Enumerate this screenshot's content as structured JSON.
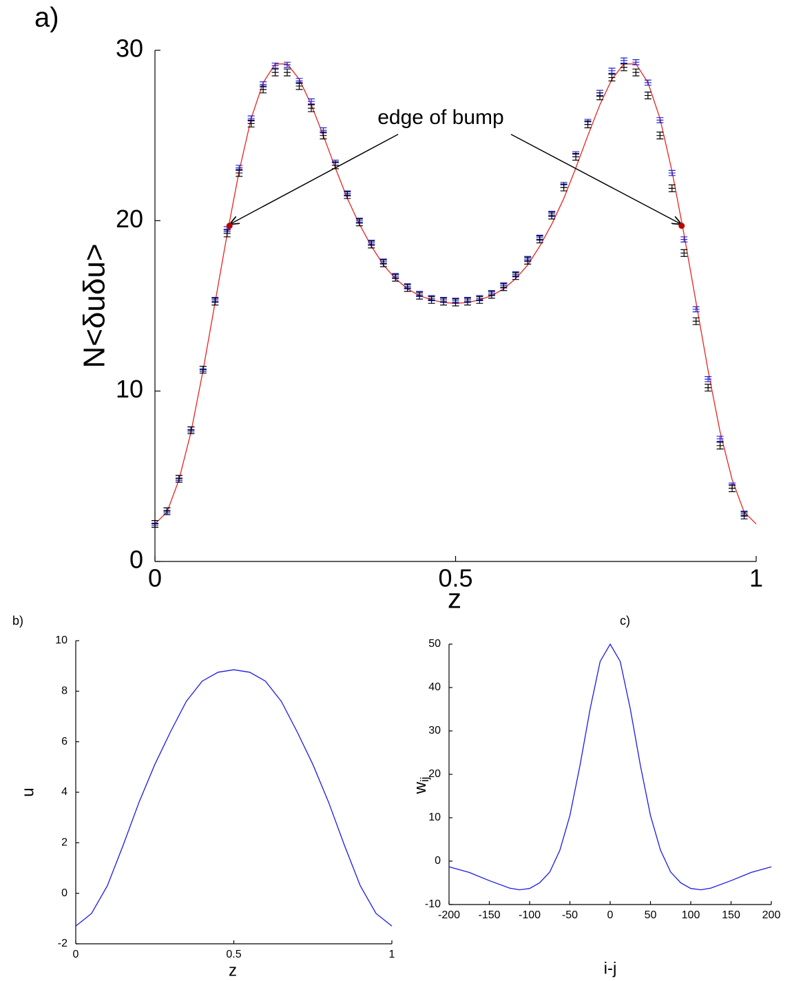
{
  "chart_data": [
    {
      "type": "line",
      "panel_label": "a)",
      "xlabel": "z",
      "ylabel": "N<δuδu>",
      "xlim": [
        0,
        1
      ],
      "xticks": [
        0,
        0.5,
        1
      ],
      "ylim": [
        0,
        30
      ],
      "yticks": [
        0,
        10,
        20,
        30
      ],
      "series": [
        {
          "type": "line",
          "color": "#e8231e",
          "x": [
            0,
            0.02,
            0.04,
            0.06,
            0.08,
            0.1,
            0.12,
            0.14,
            0.16,
            0.18,
            0.2,
            0.22,
            0.24,
            0.26,
            0.28,
            0.3,
            0.32,
            0.34,
            0.36,
            0.38,
            0.4,
            0.42,
            0.44,
            0.46,
            0.48,
            0.5,
            0.52,
            0.54,
            0.56,
            0.58,
            0.6,
            0.62,
            0.64,
            0.66,
            0.68,
            0.7,
            0.72,
            0.74,
            0.76,
            0.78,
            0.8,
            0.82,
            0.84,
            0.86,
            0.88,
            0.9,
            0.92,
            0.94,
            0.96,
            0.98,
            1
          ],
          "values": [
            2.2,
            2.9,
            4.8,
            7.6,
            11.2,
            15.2,
            19.2,
            22.9,
            26.0,
            28.1,
            29.2,
            29.2,
            28.3,
            26.8,
            25.0,
            23.1,
            21.3,
            19.8,
            18.5,
            17.4,
            16.6,
            16.0,
            15.6,
            15.35,
            15.2,
            15.15,
            15.2,
            15.35,
            15.6,
            16.0,
            16.6,
            17.4,
            18.5,
            19.8,
            21.3,
            23.1,
            25.0,
            26.8,
            28.3,
            29.2,
            29.2,
            28.1,
            26.0,
            22.9,
            19.2,
            15.2,
            11.2,
            7.6,
            4.8,
            2.9,
            2.2
          ]
        },
        {
          "type": "errorbar",
          "color": "#2020d8",
          "x": [
            0,
            0.02,
            0.04,
            0.06,
            0.08,
            0.1,
            0.12,
            0.14,
            0.16,
            0.18,
            0.2,
            0.22,
            0.24,
            0.26,
            0.28,
            0.3,
            0.32,
            0.34,
            0.36,
            0.38,
            0.4,
            0.42,
            0.44,
            0.46,
            0.48,
            0.5,
            0.52,
            0.54,
            0.56,
            0.58,
            0.6,
            0.62,
            0.64,
            0.66,
            0.68,
            0.7,
            0.72,
            0.74,
            0.76,
            0.78,
            0.8,
            0.82,
            0.84,
            0.86,
            0.88,
            0.9,
            0.92,
            0.94,
            0.96,
            0.98
          ],
          "values": [
            2.25,
            3.0,
            4.9,
            7.75,
            11.3,
            15.35,
            19.5,
            23.1,
            26.0,
            28.0,
            29.1,
            29.15,
            28.2,
            27.0,
            25.3,
            23.4,
            21.6,
            20.0,
            18.7,
            17.6,
            16.75,
            16.15,
            15.7,
            15.45,
            15.35,
            15.3,
            15.35,
            15.45,
            15.75,
            16.2,
            16.85,
            17.75,
            19.0,
            20.4,
            22.1,
            23.9,
            25.8,
            27.5,
            28.8,
            29.4,
            29.3,
            28.1,
            25.9,
            22.8,
            18.9,
            14.8,
            10.7,
            7.2,
            4.45,
            2.8
          ],
          "errors": [
            0.15,
            0.15,
            0.15,
            0.15,
            0.15,
            0.15,
            0.15,
            0.15,
            0.15,
            0.15,
            0.15,
            0.15,
            0.15,
            0.15,
            0.15,
            0.15,
            0.15,
            0.15,
            0.15,
            0.15,
            0.15,
            0.15,
            0.15,
            0.15,
            0.15,
            0.15,
            0.15,
            0.15,
            0.15,
            0.15,
            0.15,
            0.15,
            0.15,
            0.15,
            0.15,
            0.15,
            0.15,
            0.15,
            0.15,
            0.15,
            0.15,
            0.15,
            0.15,
            0.15,
            0.15,
            0.15,
            0.15,
            0.15,
            0.15,
            0.15
          ]
        },
        {
          "type": "errorbar",
          "color": "#000000",
          "x": [
            0,
            0.02,
            0.04,
            0.06,
            0.08,
            0.1,
            0.12,
            0.14,
            0.16,
            0.18,
            0.2,
            0.22,
            0.24,
            0.26,
            0.28,
            0.3,
            0.32,
            0.34,
            0.36,
            0.38,
            0.4,
            0.42,
            0.44,
            0.46,
            0.48,
            0.5,
            0.52,
            0.54,
            0.56,
            0.58,
            0.6,
            0.62,
            0.64,
            0.66,
            0.68,
            0.7,
            0.72,
            0.74,
            0.76,
            0.78,
            0.8,
            0.82,
            0.84,
            0.86,
            0.88,
            0.9,
            0.92,
            0.94,
            0.96,
            0.98
          ],
          "values": [
            2.2,
            2.95,
            4.85,
            7.7,
            11.25,
            15.25,
            19.25,
            22.8,
            25.7,
            27.7,
            28.7,
            28.7,
            27.9,
            26.6,
            25.0,
            23.25,
            21.5,
            19.9,
            18.6,
            17.5,
            16.65,
            16.05,
            15.6,
            15.35,
            15.25,
            15.2,
            15.25,
            15.35,
            15.65,
            16.1,
            16.75,
            17.65,
            18.9,
            20.3,
            21.95,
            23.75,
            25.65,
            27.3,
            28.4,
            29.0,
            28.7,
            27.35,
            25.0,
            21.9,
            18.1,
            14.1,
            10.2,
            6.8,
            4.3,
            2.7
          ],
          "errors": [
            0.2,
            0.2,
            0.2,
            0.2,
            0.2,
            0.2,
            0.2,
            0.2,
            0.2,
            0.2,
            0.2,
            0.2,
            0.2,
            0.2,
            0.2,
            0.2,
            0.2,
            0.2,
            0.2,
            0.2,
            0.2,
            0.2,
            0.2,
            0.2,
            0.2,
            0.2,
            0.2,
            0.2,
            0.2,
            0.2,
            0.2,
            0.2,
            0.2,
            0.2,
            0.2,
            0.2,
            0.2,
            0.2,
            0.2,
            0.2,
            0.2,
            0.2,
            0.2,
            0.2,
            0.2,
            0.2,
            0.2,
            0.2,
            0.2,
            0.2
          ]
        }
      ],
      "annotation": {
        "text": "edge of bump",
        "color": "#c00000",
        "points": [
          [
            0.124,
            19.7
          ],
          [
            0.876,
            19.7
          ]
        ]
      }
    },
    {
      "type": "line",
      "panel_label": "b)",
      "xlabel": "z",
      "ylabel": "u",
      "xlim": [
        0,
        1
      ],
      "xticks": [
        0,
        0.5,
        1
      ],
      "ylim": [
        -2,
        10
      ],
      "yticks": [
        -2,
        0,
        2,
        4,
        6,
        8,
        10
      ],
      "series": [
        {
          "type": "line",
          "color": "#1a1ae6",
          "x": [
            0,
            0.05,
            0.1,
            0.15,
            0.2,
            0.25,
            0.3,
            0.35,
            0.4,
            0.45,
            0.5,
            0.55,
            0.6,
            0.65,
            0.7,
            0.75,
            0.8,
            0.85,
            0.9,
            0.95,
            1
          ],
          "values": [
            -1.3,
            -0.8,
            0.3,
            1.9,
            3.6,
            5.1,
            6.4,
            7.6,
            8.4,
            8.75,
            8.85,
            8.75,
            8.4,
            7.6,
            6.4,
            5.1,
            3.6,
            1.9,
            0.3,
            -0.8,
            -1.3
          ]
        }
      ]
    },
    {
      "type": "line",
      "panel_label": "c)",
      "xlabel": "i-j",
      "ylabel": "w",
      "ylabel_subscript": "ij",
      "xlim": [
        -200,
        200
      ],
      "xticks": [
        -200,
        -150,
        -100,
        -50,
        0,
        50,
        100,
        150,
        200
      ],
      "ylim": [
        -10,
        50
      ],
      "yticks": [
        -10,
        0,
        10,
        20,
        30,
        40,
        50
      ],
      "series": [
        {
          "type": "line",
          "color": "#1a1ae6",
          "x": [
            -200,
            -175,
            -150,
            -125,
            -112.5,
            -100,
            -87.5,
            -75,
            -62.5,
            -50,
            -37.5,
            -25,
            -12.5,
            0,
            12.5,
            25,
            37.5,
            50,
            62.5,
            75,
            87.5,
            100,
            112.5,
            125,
            150,
            175,
            200
          ],
          "values": [
            -1.3,
            -2.6,
            -4.5,
            -6.2,
            -6.6,
            -6.3,
            -5,
            -2.5,
            2.5,
            10.5,
            22,
            35,
            46,
            50,
            46,
            35,
            22,
            10.5,
            2.5,
            -2.5,
            -5,
            -6.3,
            -6.6,
            -6.2,
            -4.5,
            -2.6,
            -1.3
          ]
        }
      ]
    }
  ]
}
